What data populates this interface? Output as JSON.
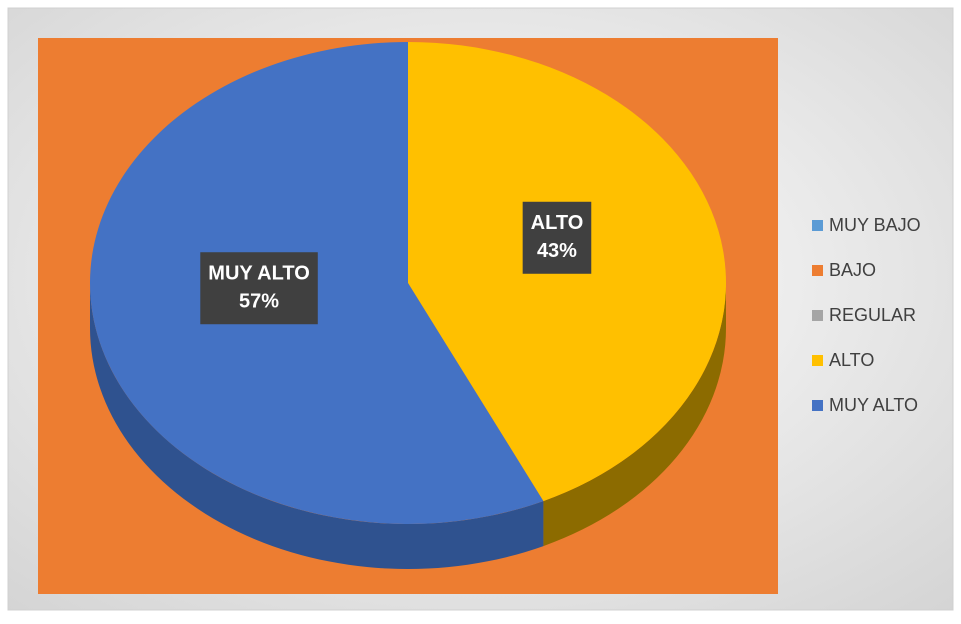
{
  "chart_data": {
    "type": "pie",
    "categories": [
      "MUY BAJO",
      "BAJO",
      "REGULAR",
      "ALTO",
      "MUY ALTO"
    ],
    "values": [
      0,
      0,
      0,
      43,
      57
    ],
    "value_labels": [
      null,
      null,
      null,
      "43%",
      "57%"
    ],
    "colors": [
      "#5b9bd5",
      "#ed7d31",
      "#a5a5a5",
      "#ffc000",
      "#4472c4"
    ],
    "side_colors": [
      "#3e73a3",
      "#b35c20",
      "#7a7a7a",
      "#8c6b00",
      "#2f528f"
    ],
    "legend": "right"
  }
}
